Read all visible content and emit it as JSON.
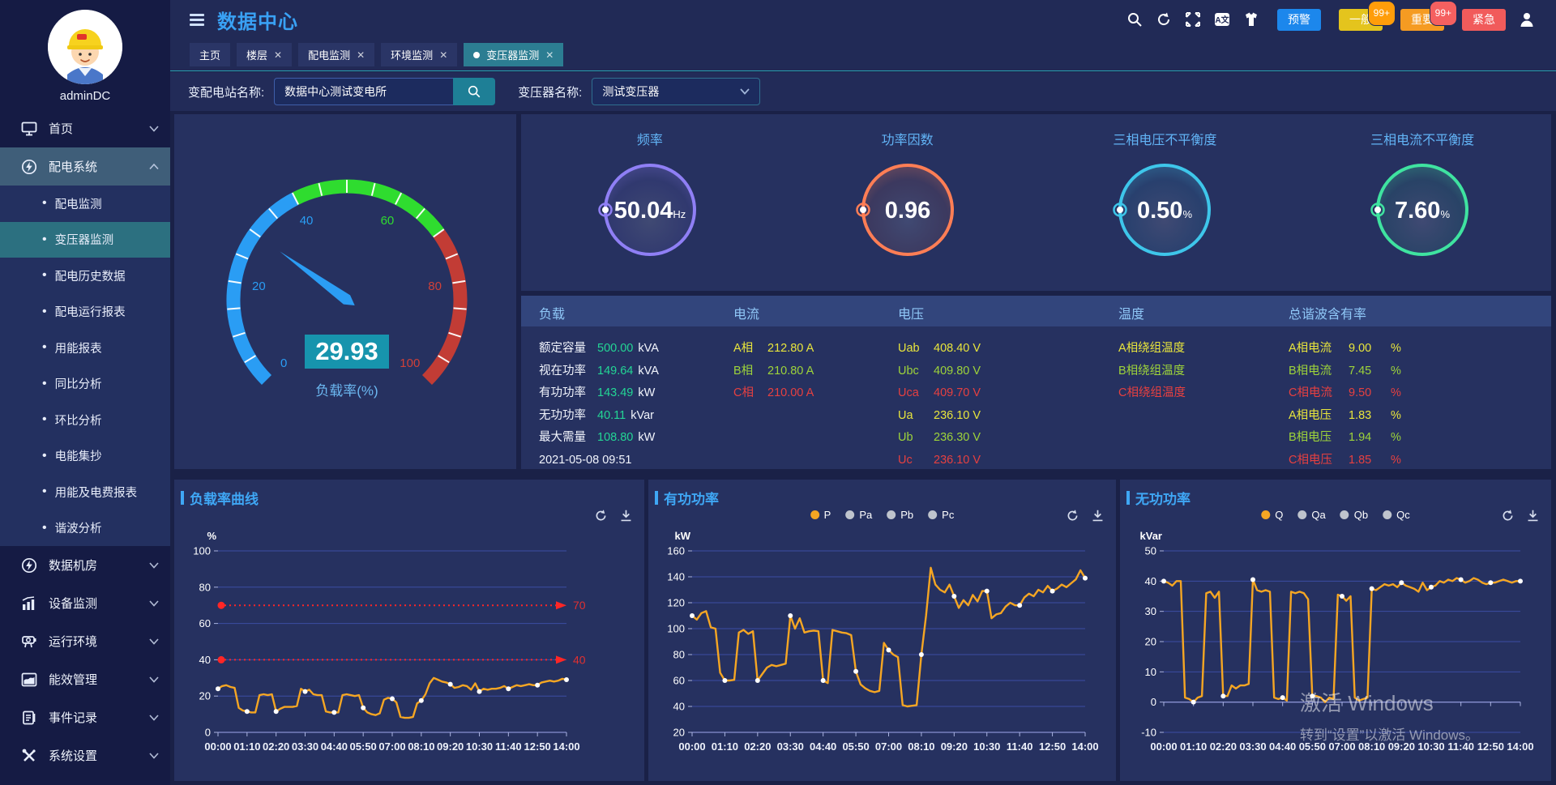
{
  "header": {
    "title": "数据中心",
    "icons": [
      "search-icon",
      "refresh-icon",
      "fullscreen-icon",
      "translate-icon",
      "theme-icon",
      "user-icon"
    ],
    "buttons": [
      {
        "label": "预警",
        "bg": "#1c87ec"
      },
      {
        "label": "一般",
        "bg": "#e4c41d",
        "badge": "99+",
        "badge_bg": "#ff9d0a"
      },
      {
        "label": "重要",
        "bg": "#f59b22",
        "badge": "99+",
        "badge_bg": "#f56060"
      },
      {
        "label": "紧急",
        "bg": "#f15b5b"
      }
    ]
  },
  "tabs": [
    {
      "label": "主页",
      "closable": false,
      "active": false
    },
    {
      "label": "楼层",
      "closable": true,
      "active": false
    },
    {
      "label": "配电监测",
      "closable": true,
      "active": false
    },
    {
      "label": "环境监测",
      "closable": true,
      "active": false
    },
    {
      "label": "变压器监测",
      "closable": true,
      "active": true
    }
  ],
  "search": {
    "station_label": "变配电站名称:",
    "station_value": "数据中心测试变电所",
    "transformer_label": "变压器名称:",
    "transformer_value": "测试变压器"
  },
  "sidebar": {
    "user": "adminDC",
    "items": [
      {
        "label": "首页",
        "icon": "monitor-icon",
        "chev": "down"
      },
      {
        "label": "配电系统",
        "icon": "power-circle-icon",
        "chev": "up",
        "highlight": true,
        "has_submenu": true
      },
      {
        "label": "数据机房",
        "icon": "power-circle-icon",
        "chev": "down"
      },
      {
        "label": "设备监测",
        "icon": "bar-chart-icon",
        "chev": "down"
      },
      {
        "label": "运行环境",
        "icon": "device-icon",
        "chev": "down"
      },
      {
        "label": "能效管理",
        "icon": "area-chart-icon",
        "chev": "down"
      },
      {
        "label": "事件记录",
        "icon": "document-icon",
        "chev": "down"
      },
      {
        "label": "系统设置",
        "icon": "tools-icon",
        "chev": "down"
      }
    ],
    "submenu": [
      "配电监测",
      "变压器监测",
      "配电历史数据",
      "配电运行报表",
      "用能报表",
      "同比分析",
      "环比分析",
      "电能集抄",
      "用能及电费报表",
      "谐波分析"
    ],
    "active_submenu": "变压器监测"
  },
  "speedometer": {
    "value": 29.93,
    "value_text": "29.93",
    "label": "负载率(%)",
    "min": 0,
    "max": 100,
    "segments": [
      {
        "to": 40,
        "color": "#2a9df4"
      },
      {
        "to": 70,
        "color": "#2fdc2f"
      },
      {
        "to": 100,
        "color": "#c23c35"
      }
    ],
    "tick_labels": [
      {
        "v": 0,
        "color": "#2a9df4"
      },
      {
        "v": 20,
        "color": "#2a9df4"
      },
      {
        "v": 40,
        "color": "#2a9df4"
      },
      {
        "v": 60,
        "color": "#2fdc2f"
      },
      {
        "v": 80,
        "color": "#d04038"
      },
      {
        "v": 100,
        "color": "#d04038"
      }
    ],
    "value_box_color": "#1794ad",
    "needle_color": "#2b9df4"
  },
  "ring_gauges": [
    {
      "title": "频率",
      "value": "50.04",
      "unit": "Hz",
      "color": "#8f7ff5"
    },
    {
      "title": "功率因数",
      "value": "0.96",
      "unit": "",
      "color": "#ff7e55"
    },
    {
      "title": "三相电压不平衡度",
      "value": "0.50",
      "unit": "%",
      "color": "#3ec6ea"
    },
    {
      "title": "三相电流不平衡度",
      "value": "7.60",
      "unit": "%",
      "color": "#3fe3a0"
    }
  ],
  "table": {
    "headers": [
      "负载",
      "电流",
      "电压",
      "温度",
      "总谐波含有率"
    ],
    "load_rows": [
      {
        "label": "额定容量",
        "value": "500.00",
        "unit": "kVA"
      },
      {
        "label": "视在功率",
        "value": "149.64",
        "unit": "kVA"
      },
      {
        "label": "有功功率",
        "value": "143.49",
        "unit": "kW"
      },
      {
        "label": "无功功率",
        "value": "40.11",
        "unit": "kVar"
      },
      {
        "label": "最大需量",
        "value": "108.80",
        "unit": "kW"
      }
    ],
    "timestamp": "2021-05-08 09:51",
    "current_rows": [
      {
        "label": "A相",
        "value": "212.80",
        "unit": "A",
        "color": "yellow"
      },
      {
        "label": "B相",
        "value": "210.80",
        "unit": "A",
        "color": "lime"
      },
      {
        "label": "C相",
        "value": "210.00",
        "unit": "A",
        "color": "red"
      }
    ],
    "voltage_rows": [
      {
        "label": "Uab",
        "value": "408.40",
        "unit": "V",
        "color": "yellow"
      },
      {
        "label": "Ubc",
        "value": "409.80",
        "unit": "V",
        "color": "lime"
      },
      {
        "label": "Uca",
        "value": "409.70",
        "unit": "V",
        "color": "red"
      },
      {
        "label": "Ua",
        "value": "236.10",
        "unit": "V",
        "color": "yellow"
      },
      {
        "label": "Ub",
        "value": "236.30",
        "unit": "V",
        "color": "lime"
      },
      {
        "label": "Uc",
        "value": "236.10",
        "unit": "V",
        "color": "red"
      }
    ],
    "temperature_rows": [
      {
        "label": "A相绕组温度",
        "color": "yellow"
      },
      {
        "label": "B相绕组温度",
        "color": "lime"
      },
      {
        "label": "C相绕组温度",
        "color": "red"
      }
    ],
    "thd_rows": [
      {
        "label": "A相电流",
        "value": "9.00",
        "unit": "%",
        "color": "yellow"
      },
      {
        "label": "B相电流",
        "value": "7.45",
        "unit": "%",
        "color": "lime"
      },
      {
        "label": "C相电流",
        "value": "9.50",
        "unit": "%",
        "color": "red"
      },
      {
        "label": "A相电压",
        "value": "1.83",
        "unit": "%",
        "color": "yellow"
      },
      {
        "label": "B相电压",
        "value": "1.94",
        "unit": "%",
        "color": "lime"
      },
      {
        "label": "C相电压",
        "value": "1.85",
        "unit": "%",
        "color": "red"
      }
    ]
  },
  "chart_data": [
    {
      "type": "line",
      "title": "负载率曲线",
      "unit": "%",
      "ylim": [
        0,
        100
      ],
      "yticks": [
        0,
        20,
        40,
        60,
        80,
        100
      ],
      "axis_value": 0,
      "x_step_min": 10,
      "tick_every_min": 70,
      "xticks": [
        "00:00",
        "01:10",
        "02:20",
        "03:30",
        "04:40",
        "05:50",
        "07:00",
        "08:10",
        "09:20",
        "10:30",
        "11:40",
        "12:50",
        "14:00"
      ],
      "thresholds": [
        {
          "value": 70,
          "label": "70"
        },
        {
          "value": 40,
          "label": "40"
        }
      ],
      "legend": [],
      "series": [
        {
          "name": "负载率",
          "color": "#f5a623",
          "values": [
            24,
            25.5,
            26,
            25,
            24.5,
            13.5,
            12,
            11.5,
            11,
            11,
            20.5,
            21,
            20.5,
            21,
            11.5,
            13,
            14,
            14,
            14,
            14.5,
            24,
            22.5,
            23.5,
            21,
            20.5,
            20.5,
            11.5,
            11,
            11,
            11,
            20.5,
            21,
            20.5,
            20,
            20.5,
            13.5,
            11,
            10,
            9.5,
            10.5,
            18,
            19,
            18.5,
            16.5,
            8.5,
            8,
            8,
            8.5,
            16,
            17.5,
            21,
            27,
            30,
            29,
            28,
            27.5,
            26.5,
            24.5,
            25,
            26,
            25.5,
            23.5,
            27,
            22.5,
            24,
            23.5,
            24,
            24,
            24.5,
            25.5,
            24,
            25,
            26,
            25.5,
            26,
            26.5,
            26,
            26,
            27.5,
            28,
            28.5,
            28,
            28.5,
            29.5,
            29
          ]
        }
      ]
    },
    {
      "type": "line",
      "title": "有功功率",
      "unit": "kW",
      "ylim": [
        20,
        160
      ],
      "yticks": [
        20,
        40,
        60,
        80,
        100,
        120,
        140,
        160
      ],
      "axis_value": 20,
      "x_step_min": 10,
      "tick_every_min": 70,
      "xticks": [
        "00:00",
        "01:10",
        "02:20",
        "03:30",
        "04:40",
        "05:50",
        "07:00",
        "08:10",
        "09:20",
        "10:30",
        "11:40",
        "12:50",
        "14:00"
      ],
      "thresholds": [],
      "legend": [
        {
          "label": "P",
          "color": "#f5a623"
        },
        {
          "label": "Pa",
          "color": "#bfc4cd"
        },
        {
          "label": "Pb",
          "color": "#bfc4cd"
        },
        {
          "label": "Pc",
          "color": "#bfc4cd"
        }
      ],
      "series": [
        {
          "name": "P",
          "color": "#f5a623",
          "values": [
            110,
            107,
            112,
            113.5,
            101,
            100,
            66,
            60,
            60,
            60.5,
            97,
            99,
            96,
            98,
            60,
            65,
            70,
            72,
            71,
            72,
            73,
            110,
            100,
            108,
            97,
            98,
            98.5,
            98,
            60,
            58,
            99,
            98,
            97,
            96.5,
            95,
            67,
            57,
            54,
            52,
            51,
            52,
            89,
            83.5,
            80,
            78,
            41,
            40,
            40.5,
            41,
            80,
            110,
            147,
            134,
            130,
            128,
            134,
            125,
            116,
            122,
            118,
            126,
            121,
            129,
            129,
            108,
            111,
            112,
            117,
            120,
            118,
            118,
            124,
            127,
            125,
            130,
            128,
            133,
            129,
            131,
            134,
            132,
            135,
            138,
            145,
            139
          ]
        }
      ]
    },
    {
      "type": "line",
      "title": "无功功率",
      "unit": "kVar",
      "ylim": [
        -10,
        50
      ],
      "yticks": [
        -10,
        0,
        10,
        20,
        30,
        40,
        50
      ],
      "axis_value": 0,
      "x_step_min": 10,
      "tick_every_min": 70,
      "xticks": [
        "00:00",
        "01:10",
        "02:20",
        "03:30",
        "04:40",
        "05:50",
        "07:00",
        "08:10",
        "09:20",
        "10:30",
        "11:40",
        "12:50",
        "14:00"
      ],
      "thresholds": [],
      "legend": [
        {
          "label": "Q",
          "color": "#f5a623"
        },
        {
          "label": "Qa",
          "color": "#bfc4cd"
        },
        {
          "label": "Qb",
          "color": "#bfc4cd"
        },
        {
          "label": "Qc",
          "color": "#bfc4cd"
        }
      ],
      "series": [
        {
          "name": "Q",
          "color": "#f5a623",
          "values": [
            40,
            39.5,
            38.5,
            40,
            40,
            1.5,
            1,
            0,
            1.5,
            2,
            36,
            36.5,
            34.5,
            36.5,
            2,
            2,
            5.5,
            4.5,
            5.5,
            5.5,
            6,
            40.5,
            37,
            36.5,
            37,
            36.5,
            1.5,
            1,
            1.5,
            0.5,
            36.5,
            36,
            36.5,
            36,
            34,
            2,
            2,
            1.5,
            0,
            1.5,
            1,
            35.5,
            35,
            33.5,
            35,
            1.5,
            0.5,
            1,
            1.5,
            37.5,
            37,
            38,
            39,
            38.5,
            39,
            38,
            39.5,
            38.5,
            38,
            37.5,
            36.5,
            39.5,
            37,
            38,
            38.5,
            40,
            39.5,
            40.5,
            40,
            41,
            40.5,
            39.5,
            40,
            41,
            40.5,
            39.5,
            39,
            39.5,
            39.5,
            40,
            40.5,
            40,
            39.5,
            40,
            40
          ]
        }
      ]
    }
  ],
  "watermark": {
    "line1": "激活 Windows",
    "line2": "转到“设置”以激活 Windows。"
  }
}
